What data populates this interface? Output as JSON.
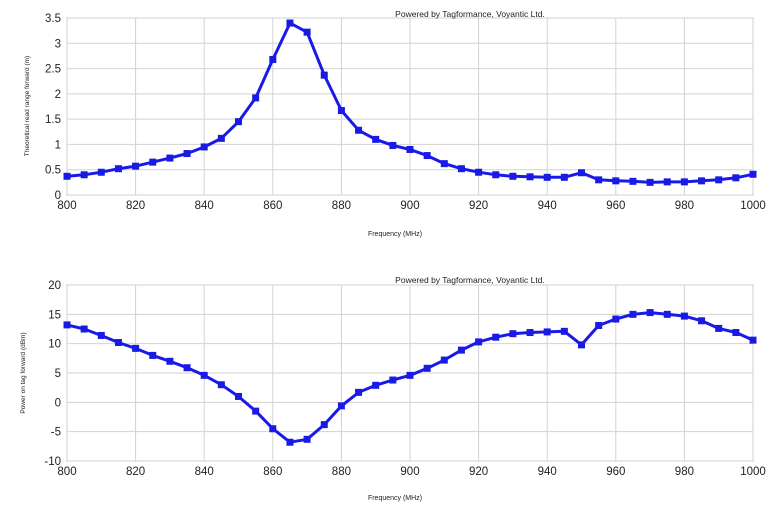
{
  "chart_data": [
    {
      "type": "line",
      "title": "",
      "annotation": "Powered by Tagformance, Voyantic Ltd.",
      "xlabel": "Frequency (MHz)",
      "ylabel": "Theoretical read range forward (m)",
      "xlim": [
        800,
        1000
      ],
      "ylim": [
        0,
        3.5
      ],
      "xticks": [
        800,
        820,
        840,
        860,
        880,
        900,
        920,
        940,
        960,
        980,
        1000
      ],
      "yticks": [
        0,
        0.5,
        1,
        1.5,
        2,
        2.5,
        3,
        3.5
      ],
      "grid": true,
      "series_color": "#1a1ae6",
      "x": [
        800,
        805,
        810,
        815,
        820,
        825,
        830,
        835,
        840,
        845,
        850,
        855,
        860,
        865,
        870,
        875,
        880,
        885,
        890,
        895,
        900,
        905,
        910,
        915,
        920,
        925,
        930,
        935,
        940,
        945,
        950,
        955,
        960,
        965,
        970,
        975,
        980,
        985,
        990,
        995,
        1000
      ],
      "y": [
        0.37,
        0.4,
        0.45,
        0.52,
        0.57,
        0.65,
        0.73,
        0.82,
        0.95,
        1.12,
        1.45,
        1.92,
        2.68,
        3.4,
        3.22,
        2.37,
        1.67,
        1.28,
        1.1,
        0.98,
        0.9,
        0.78,
        0.62,
        0.52,
        0.45,
        0.4,
        0.37,
        0.36,
        0.35,
        0.35,
        0.44,
        0.3,
        0.28,
        0.27,
        0.25,
        0.26,
        0.26,
        0.28,
        0.3,
        0.34,
        0.41
      ]
    },
    {
      "type": "line",
      "title": "",
      "annotation": "Powered by Tagformance, Voyantic Ltd.",
      "xlabel": "Frequency (MHz)",
      "ylabel": "Power on tag forward (dBm)",
      "xlim": [
        800,
        1000
      ],
      "ylim": [
        -10,
        20
      ],
      "xticks": [
        800,
        820,
        840,
        860,
        880,
        900,
        920,
        940,
        960,
        980,
        1000
      ],
      "yticks": [
        -10,
        -5,
        0,
        5,
        10,
        15,
        20
      ],
      "grid": true,
      "series_color": "#1a1ae6",
      "x": [
        800,
        805,
        810,
        815,
        820,
        825,
        830,
        835,
        840,
        845,
        850,
        855,
        860,
        865,
        870,
        875,
        880,
        885,
        890,
        895,
        900,
        905,
        910,
        915,
        920,
        925,
        930,
        935,
        940,
        945,
        950,
        955,
        960,
        965,
        970,
        975,
        980,
        985,
        990,
        995,
        1000
      ],
      "y": [
        13.2,
        12.5,
        11.4,
        10.2,
        9.2,
        8.0,
        7.0,
        5.9,
        4.6,
        3.0,
        1.0,
        -1.5,
        -4.5,
        -6.8,
        -6.3,
        -3.8,
        -0.6,
        1.7,
        2.9,
        3.8,
        4.6,
        5.8,
        7.2,
        8.9,
        10.3,
        11.1,
        11.7,
        11.9,
        12.0,
        12.1,
        9.8,
        13.1,
        14.2,
        15.0,
        15.3,
        15.0,
        14.7,
        13.9,
        12.6,
        11.9,
        10.6
      ]
    }
  ]
}
